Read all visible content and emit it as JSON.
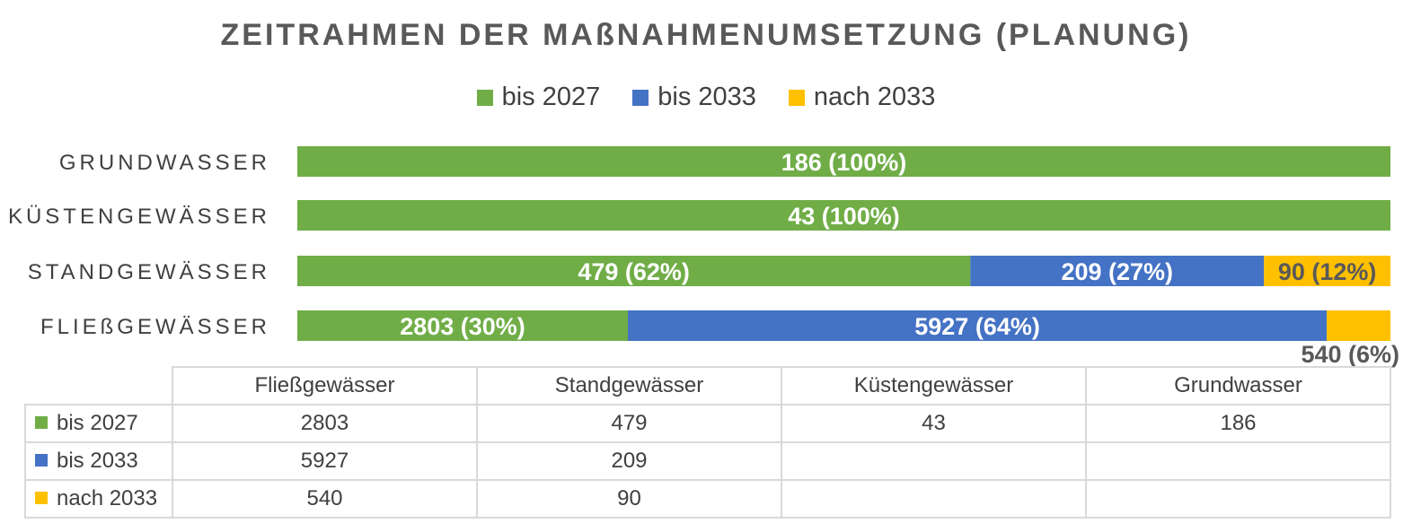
{
  "chart_data": {
    "type": "bar",
    "orientation": "horizontal",
    "stacked": "100%",
    "title": "ZEITRAHMEN DER MAßNAHMENUMSETZUNG (PLANUNG)",
    "legend_position": "top",
    "categories": [
      "Fließgewässer",
      "Standgewässer",
      "Küstengewässer",
      "Grundwasser"
    ],
    "axis_labels": [
      "FLIEßGEWÄSSER",
      "STANDGEWÄSSER",
      "KÜSTENGEWÄSSER",
      "GRUNDWASSER"
    ],
    "series": [
      {
        "name": "bis 2027",
        "color": "#70ad47",
        "values": [
          2803,
          479,
          43,
          186
        ],
        "labels": [
          "2803 (30%)",
          "479 (62%)",
          "43 (100%)",
          "186 (100%)"
        ],
        "label_color": "#ffffff"
      },
      {
        "name": "bis 2033",
        "color": "#4472c4",
        "values": [
          5927,
          209,
          null,
          null
        ],
        "labels": [
          "5927 (64%)",
          "209 (27%)",
          "",
          ""
        ],
        "label_color": "#ffffff"
      },
      {
        "name": "nach 2033",
        "color": "#ffc000",
        "values": [
          540,
          90,
          null,
          null
        ],
        "labels": [
          "540 (6%)",
          "90 (12%)",
          "",
          ""
        ],
        "label_color": "#595959"
      }
    ],
    "grid": false
  },
  "table": {
    "columns": [
      "Fließgewässer",
      "Standgewässer",
      "Küstengewässer",
      "Grundwasser"
    ],
    "rows": [
      {
        "label": "bis 2027",
        "cells": [
          "2803",
          "479",
          "43",
          "186"
        ]
      },
      {
        "label": "bis 2033",
        "cells": [
          "5927",
          "209",
          "",
          ""
        ]
      },
      {
        "label": "nach 2033",
        "cells": [
          "540",
          "90",
          "",
          ""
        ]
      }
    ]
  }
}
